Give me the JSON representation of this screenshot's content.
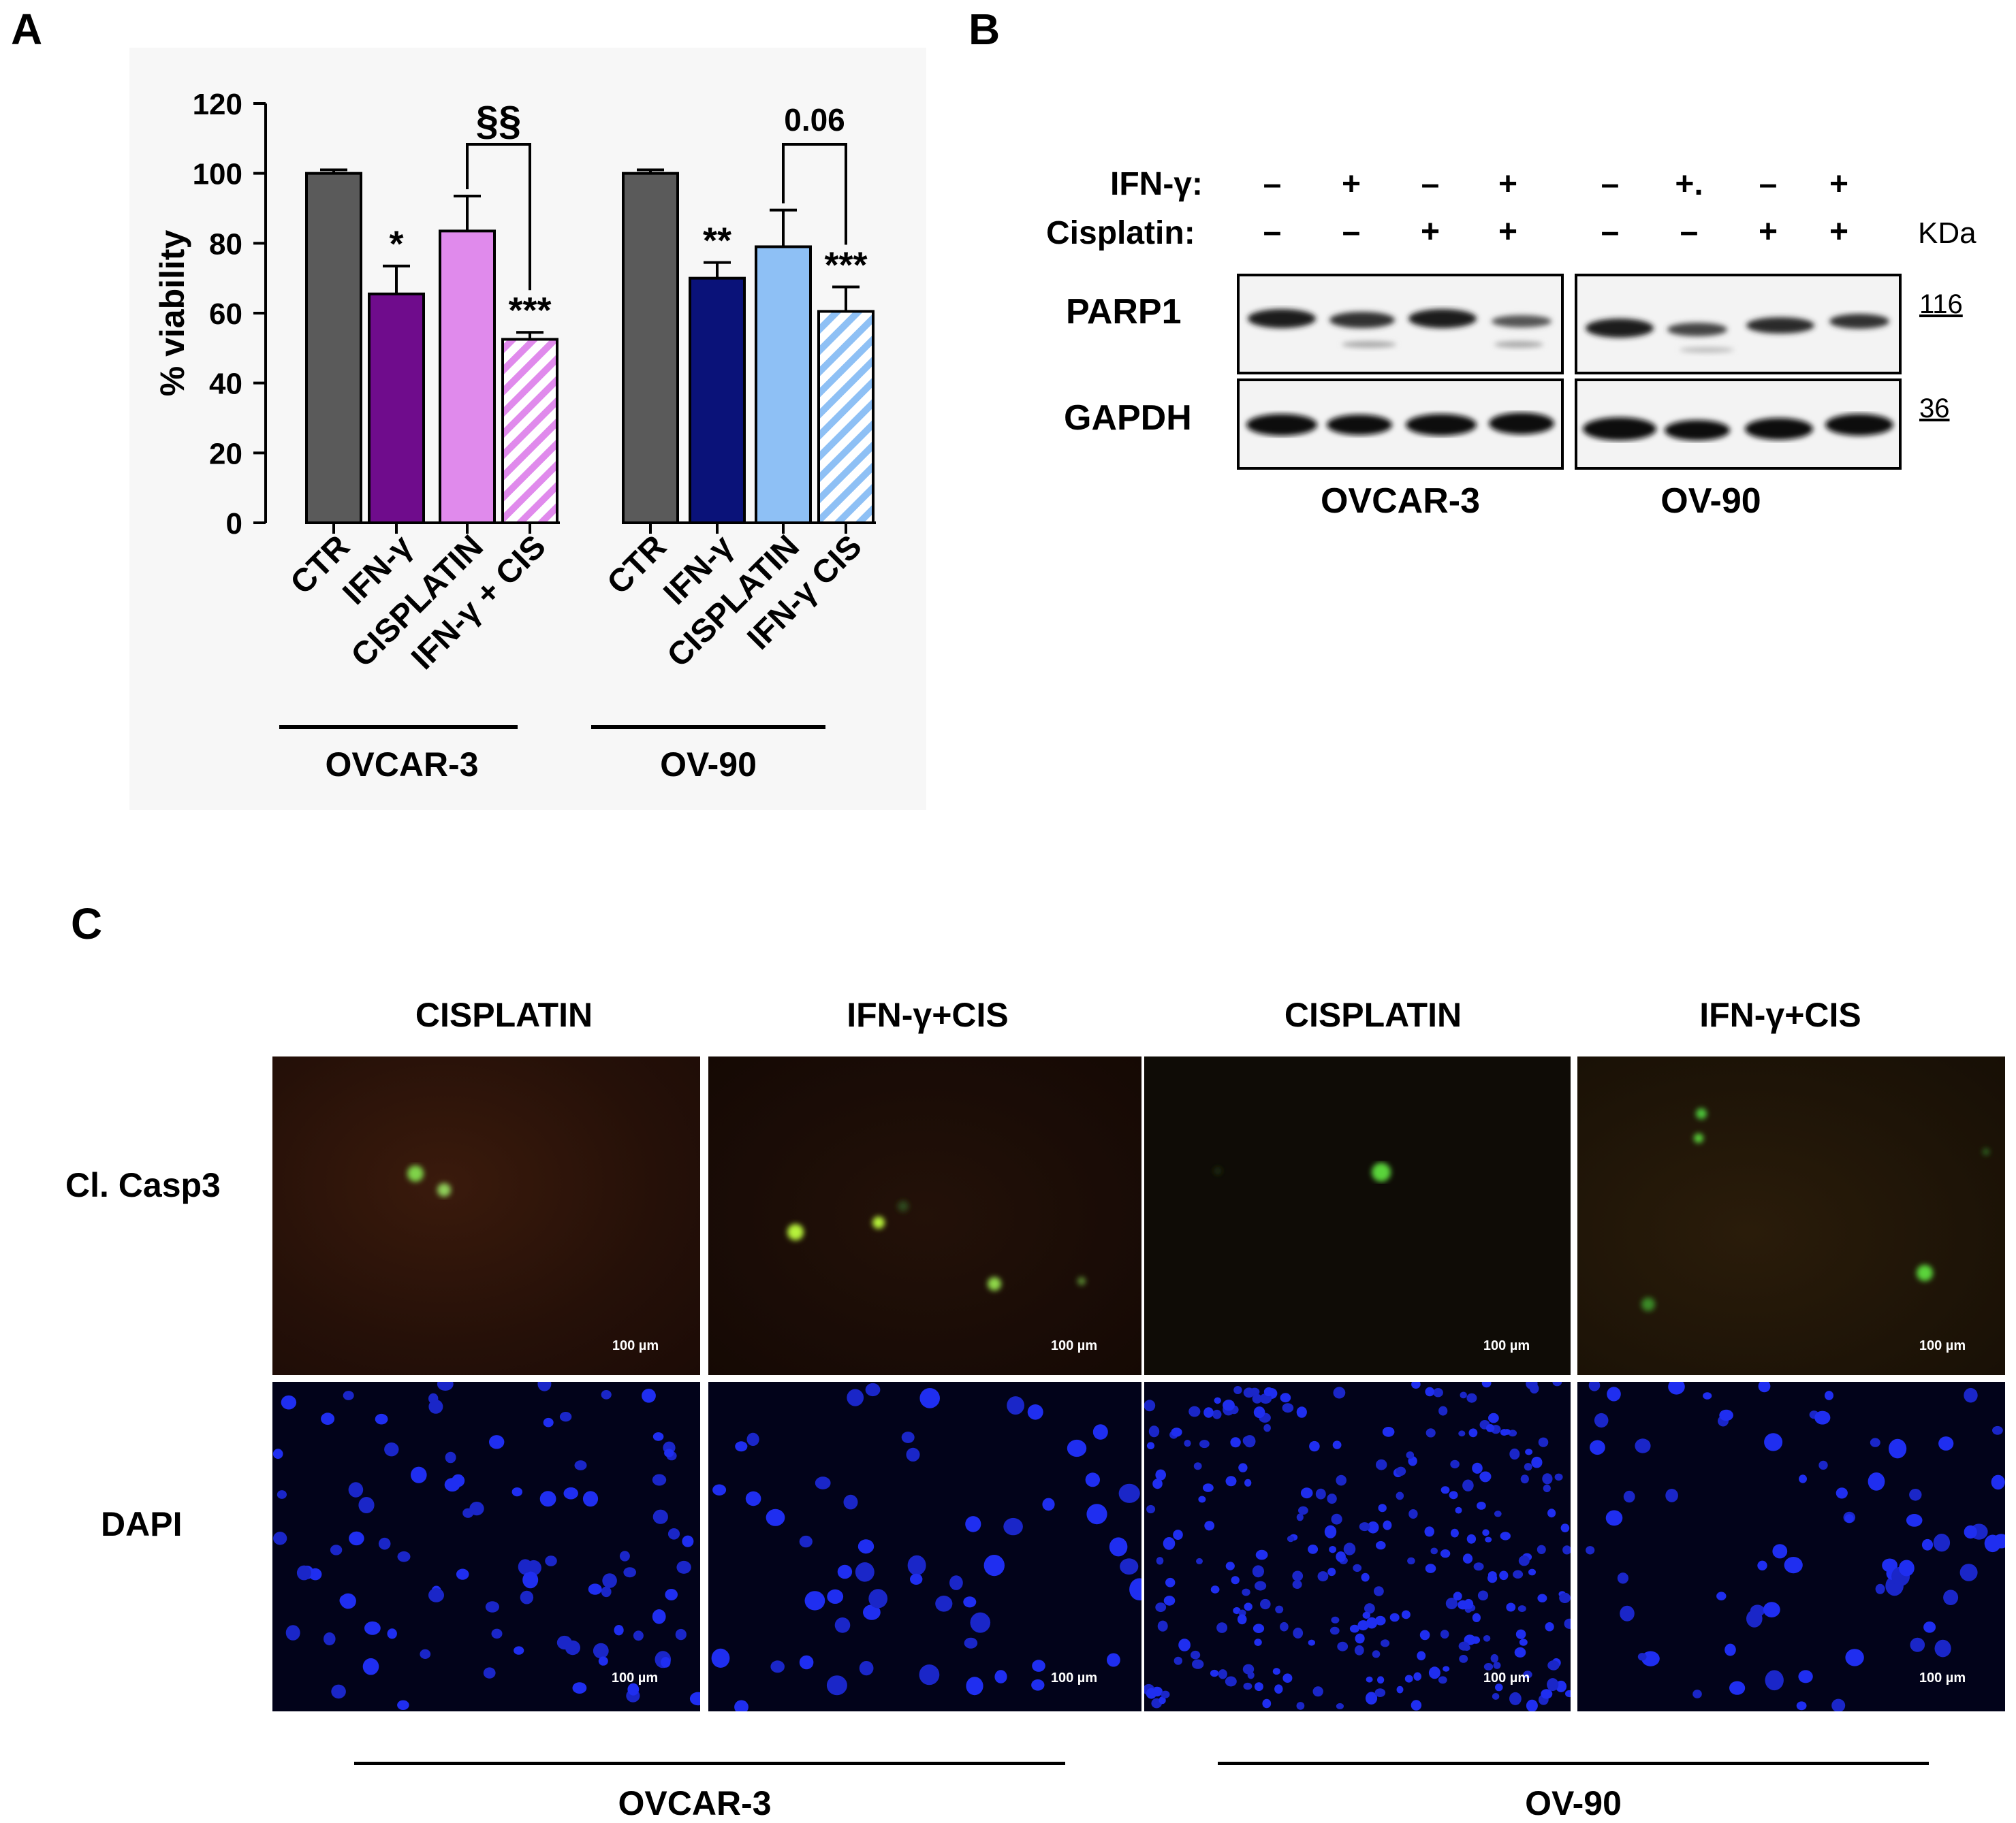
{
  "panel_a": {
    "letter": "A",
    "chart_data": {
      "type": "bar",
      "ylabel": "% viability",
      "ylim": [
        0,
        120
      ],
      "yticks": [
        "0",
        "20",
        "40",
        "60",
        "80",
        "100",
        "120"
      ],
      "categories": [
        "CTR",
        "IFN-γ",
        "CISPLATIN",
        "IFN-γ + CIS",
        "CTR",
        "IFN-γ",
        "CISPLATIN",
        "IFN-γ CIS"
      ],
      "values": [
        100,
        65.5,
        83.5,
        52.5,
        100,
        70,
        79,
        60.5
      ],
      "errors": [
        1,
        8,
        10,
        2,
        1,
        4.5,
        10.5,
        7
      ],
      "significance": [
        "",
        "*",
        "",
        "***",
        "",
        "**",
        "",
        "***"
      ],
      "colors": [
        "#5a5a5a",
        "#6f0c8c",
        "#e08aec",
        "#e08aec",
        "#5a5a5a",
        "#0a1279",
        "#8ec0f5",
        "#8ec0f5"
      ],
      "hatched": [
        false,
        false,
        false,
        true,
        false,
        false,
        false,
        true
      ],
      "groups": [
        "OVCAR-3",
        "OV-90"
      ],
      "brackets": [
        "§§",
        "0.06"
      ]
    }
  },
  "panel_b": {
    "letter": "B",
    "ifn_label": "IFN-γ:",
    "cis_label": "Cisplatin:",
    "ifn_signs": [
      "–",
      "+",
      "–",
      "+",
      "–",
      "+.",
      "–",
      "+"
    ],
    "cis_signs": [
      "–",
      "–",
      "+",
      "+",
      "–",
      "–",
      "+",
      "+"
    ],
    "kda_label": "KDa",
    "proteins": [
      "PARP1",
      "GAPDH"
    ],
    "kda_values": [
      "116",
      "36"
    ],
    "cell_lines": [
      "OVCAR-3",
      "OV-90"
    ]
  },
  "panel_c": {
    "letter": "C",
    "column_headers": [
      "CISPLATIN",
      "IFN-γ+CIS",
      "CISPLATIN",
      "IFN-γ+CIS"
    ],
    "row_labels": [
      "Cl. Casp3",
      "DAPI"
    ],
    "scale_label": "100 µm",
    "cell_lines": [
      "OVCAR-3",
      "OV-90"
    ]
  }
}
